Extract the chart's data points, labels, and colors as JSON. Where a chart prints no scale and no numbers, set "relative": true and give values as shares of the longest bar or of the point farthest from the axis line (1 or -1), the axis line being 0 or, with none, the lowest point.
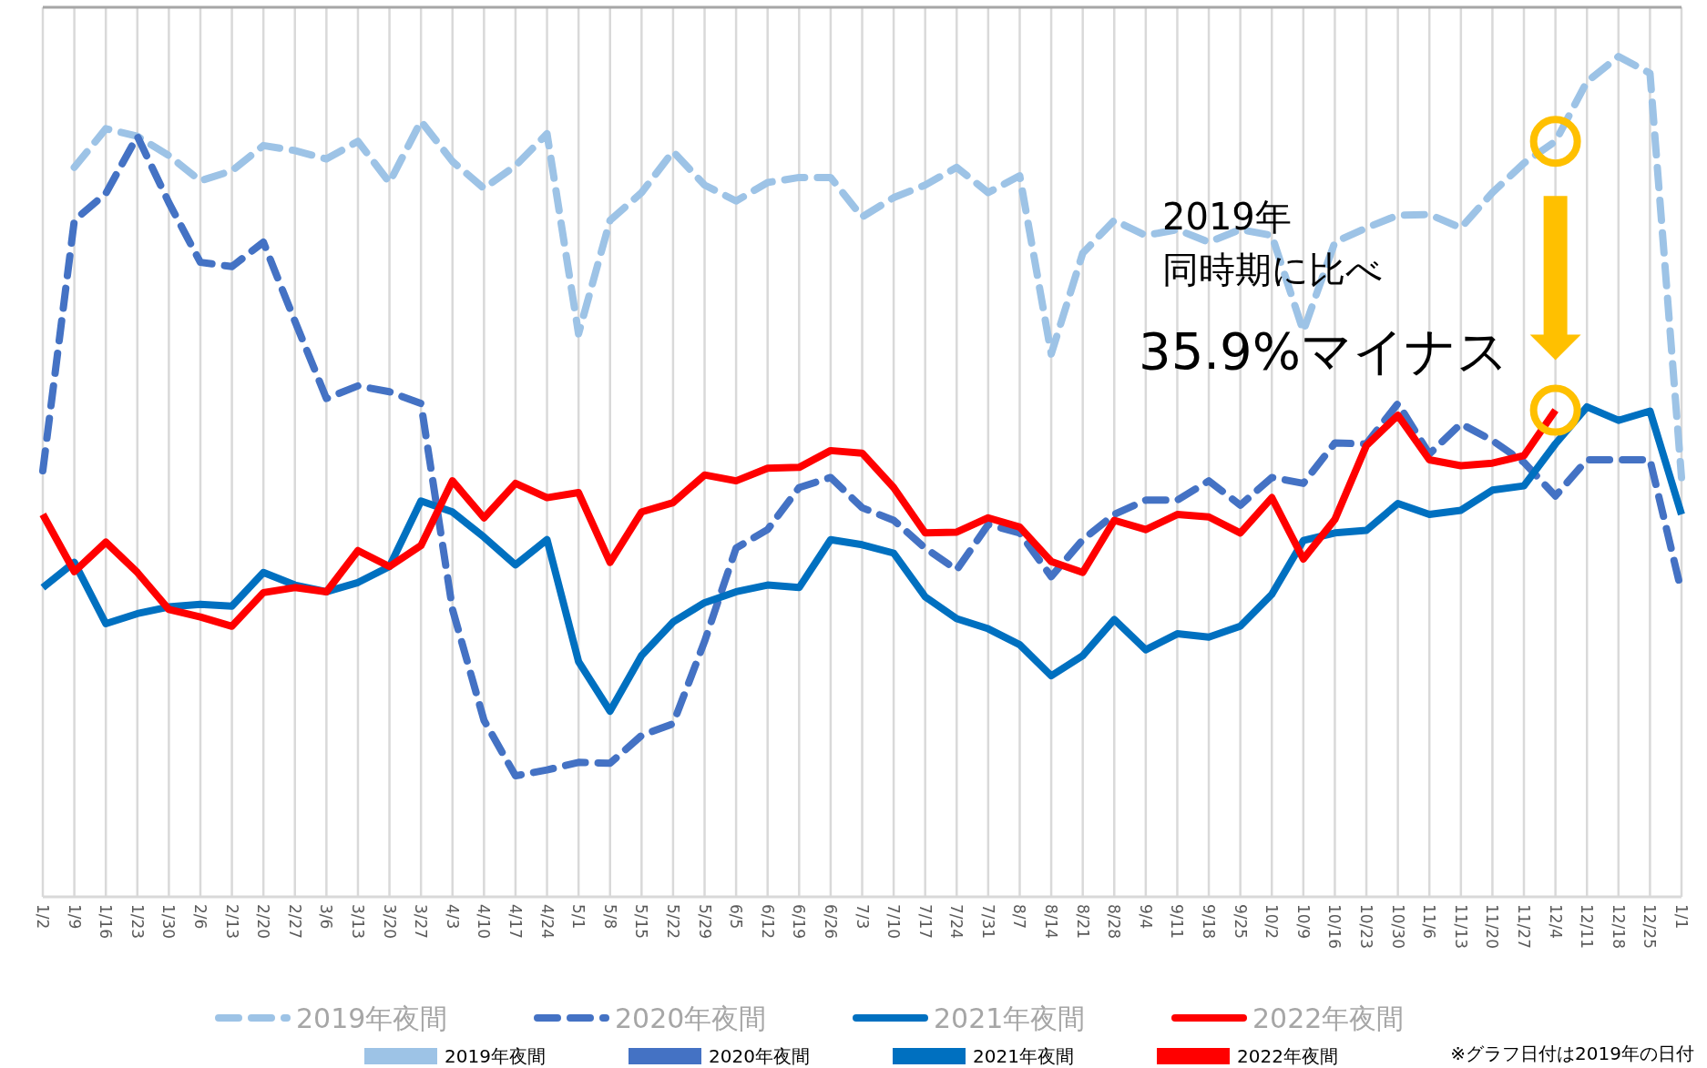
{
  "chart_data": {
    "type": "line",
    "relative": true,
    "grid": "x",
    "legend": "bottom",
    "categories": [
      "1/2",
      "1/9",
      "1/16",
      "1/23",
      "1/30",
      "2/6",
      "2/13",
      "2/20",
      "2/27",
      "3/6",
      "3/13",
      "3/20",
      "3/27",
      "4/3",
      "4/10",
      "4/17",
      "4/24",
      "5/1",
      "5/8",
      "5/15",
      "5/22",
      "5/29",
      "6/5",
      "6/12",
      "6/19",
      "6/26",
      "7/3",
      "7/10",
      "7/17",
      "7/24",
      "7/31",
      "8/7",
      "8/14",
      "8/21",
      "8/28",
      "9/4",
      "9/11",
      "9/18",
      "9/25",
      "10/2",
      "10/9",
      "10/16",
      "10/23",
      "10/30",
      "11/6",
      "11/13",
      "11/20",
      "11/27",
      "12/4",
      "12/11",
      "12/18",
      "12/25",
      "1/1"
    ],
    "series": [
      {
        "name": "2019年夜間",
        "color": "#9dc3e6",
        "line_style": "dashed",
        "values": [
          null,
          0.868,
          0.914,
          0.905,
          0.882,
          0.852,
          0.864,
          0.894,
          0.888,
          0.878,
          0.899,
          0.85,
          0.923,
          0.875,
          0.843,
          0.87,
          0.908,
          0.67,
          0.805,
          0.838,
          0.887,
          0.847,
          0.828,
          0.85,
          0.856,
          0.856,
          0.809,
          0.832,
          0.847,
          0.868,
          0.838,
          0.858,
          0.646,
          0.766,
          0.805,
          0.787,
          0.794,
          0.779,
          0.794,
          0.787,
          0.673,
          0.779,
          0.796,
          0.811,
          0.812,
          0.796,
          0.838,
          0.873,
          0.899,
          0.97,
          1,
          0.98,
          0.499
        ]
      },
      {
        "name": "2020年夜間",
        "color": "#4472c4",
        "line_style": "dashed",
        "values": [
          0.507,
          0.805,
          0.837,
          0.905,
          0.826,
          0.755,
          0.75,
          0.779,
          0.685,
          0.593,
          0.608,
          0.601,
          0.587,
          0.342,
          0.21,
          0.144,
          0.151,
          0.16,
          0.159,
          0.192,
          0.206,
          0.304,
          0.415,
          0.437,
          0.487,
          0.499,
          0.463,
          0.448,
          0.415,
          0.389,
          0.443,
          0.433,
          0.381,
          0.425,
          0.455,
          0.472,
          0.472,
          0.495,
          0.466,
          0.499,
          0.492,
          0.54,
          0.539,
          0.587,
          0.527,
          0.563,
          0.543,
          0.517,
          0.477,
          0.52,
          0.52,
          0.52,
          0.363
        ]
      },
      {
        "name": "2021年夜間",
        "color": "#0070c0",
        "line_style": "solid",
        "values": [
          0.368,
          0.398,
          0.325,
          0.337,
          0.345,
          0.348,
          0.346,
          0.386,
          0.371,
          0.363,
          0.374,
          0.393,
          0.471,
          0.458,
          0.428,
          0.395,
          0.425,
          0.28,
          0.221,
          0.287,
          0.327,
          0.35,
          0.363,
          0.371,
          0.368,
          0.425,
          0.419,
          0.409,
          0.357,
          0.331,
          0.319,
          0.3,
          0.263,
          0.287,
          0.33,
          0.294,
          0.313,
          0.309,
          0.322,
          0.36,
          0.424,
          0.433,
          0.436,
          0.468,
          0.455,
          0.46,
          0.484,
          0.489,
          0.539,
          0.583,
          0.567,
          0.578,
          0.455
        ]
      },
      {
        "name": "2022年夜間",
        "color": "#ff0000",
        "line_style": "solid",
        "values": [
          0.455,
          0.387,
          0.422,
          0.386,
          0.342,
          0.333,
          0.322,
          0.362,
          0.368,
          0.363,
          0.412,
          0.393,
          0.418,
          0.495,
          0.451,
          0.492,
          0.475,
          0.481,
          0.398,
          0.458,
          0.469,
          0.502,
          0.495,
          0.51,
          0.511,
          0.531,
          0.528,
          0.487,
          0.433,
          0.434,
          0.451,
          0.44,
          0.399,
          0.386,
          0.448,
          0.437,
          0.455,
          0.452,
          0.433,
          0.475,
          0.402,
          0.449,
          0.537,
          0.573,
          0.52,
          0.513,
          0.516,
          0.525,
          0.579,
          null,
          null,
          null,
          null
        ]
      }
    ],
    "annotations": [
      "2019年",
      "同時期に比べ",
      "35.9%マイナス",
      "※グラフ日付は2019年の日付"
    ]
  }
}
